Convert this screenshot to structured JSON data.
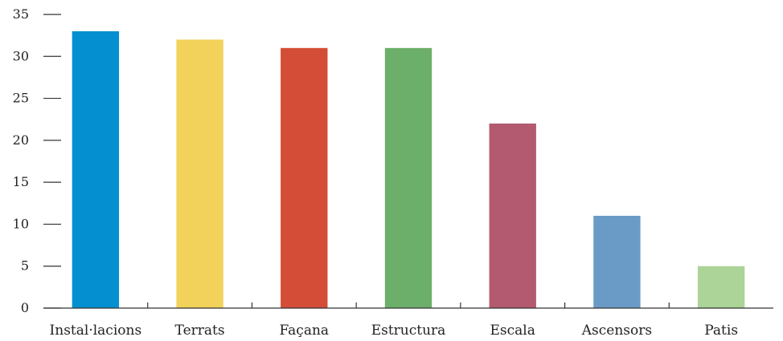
{
  "chart_data": {
    "type": "bar",
    "title": "",
    "xlabel": "",
    "ylabel": "",
    "categories": [
      "Instal·lacions",
      "Terrats",
      "Façana",
      "Estructura",
      "Escala",
      "Ascensors",
      "Patis"
    ],
    "values": [
      33,
      32,
      31,
      31,
      22,
      11,
      5
    ],
    "colors": [
      "#0490d0",
      "#f2d25a",
      "#d44d36",
      "#6caf6a",
      "#b35a70",
      "#6a9bc6",
      "#acd398"
    ],
    "ylim": [
      0,
      35
    ],
    "yticks": [
      0,
      5,
      10,
      15,
      20,
      25,
      30,
      35
    ],
    "grid": false,
    "legend": "none"
  }
}
